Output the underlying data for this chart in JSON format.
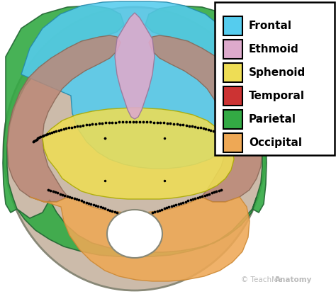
{
  "legend_items": [
    {
      "label": "Frontal",
      "color": "#55CCEE"
    },
    {
      "label": "Ethmoid",
      "color": "#DDAACC"
    },
    {
      "label": "Sphenoid",
      "color": "#EEDD55"
    },
    {
      "label": "Temporal",
      "color": "#CC3333"
    },
    {
      "label": "Parietal",
      "color": "#33AA44"
    },
    {
      "label": "Occipital",
      "color": "#EEA855"
    }
  ],
  "bg_color": "#FFFFFF",
  "fig_width": 4.74,
  "fig_height": 4.15,
  "dpi": 100,
  "watermark": "© TeachMe",
  "watermark2": "Anatomy"
}
